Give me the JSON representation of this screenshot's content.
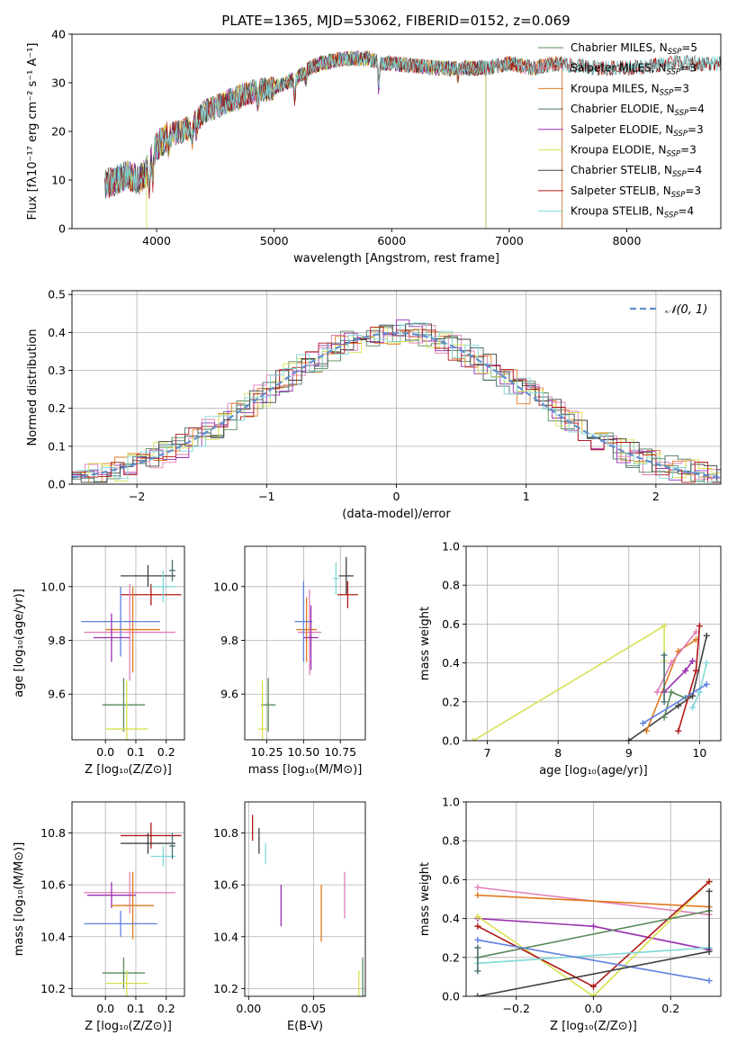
{
  "colors": {
    "ChM": "#5a8a5a",
    "SaM": "#e080b8",
    "KrM": "#e07a20",
    "ChE": "#4a7070",
    "SaE": "#9a30b0",
    "KrE": "#d8e050",
    "ChS": "#404040",
    "SaS": "#b01818",
    "KrS": "#80d8d8",
    "extra": "#6080e0",
    "gauss": "#6090d0"
  },
  "chart_data": [
    {
      "id": "spectrum",
      "type": "line",
      "title": "PLATE=1365, MJD=53062, FIBERID=0152, z=0.069",
      "xlabel": "wavelength [Angstrom, rest frame]",
      "ylabel": "Flux [fλ10⁻¹⁷ erg cm⁻² s⁻¹ A⁻¹]",
      "xlim": [
        3280,
        8800
      ],
      "ylim": [
        0,
        40
      ],
      "xticks": [
        4000,
        5000,
        6000,
        7000,
        8000
      ],
      "yticks": [
        0,
        10,
        20,
        30,
        40
      ],
      "grid": false,
      "legend": "top-right",
      "series": [
        {
          "name": "Chabrier MILES, N_SSP=5",
          "key": "ChM",
          "range": [
            3560,
            7450
          ]
        },
        {
          "name": "Salpeter MILES, N_SSP=3",
          "key": "SaM",
          "range": [
            3560,
            7450
          ]
        },
        {
          "name": "Kroupa MILES, N_SSP=3",
          "key": "KrM",
          "range": [
            3560,
            7450
          ]
        },
        {
          "name": "Chabrier ELODIE, N_SSP=4",
          "key": "ChE",
          "range": [
            3560,
            6800
          ]
        },
        {
          "name": "Salpeter ELODIE, N_SSP=3",
          "key": "SaE",
          "range": [
            3560,
            6800
          ]
        },
        {
          "name": "Kroupa ELODIE, N_SSP=3",
          "key": "KrE",
          "range": [
            3560,
            6800
          ]
        },
        {
          "name": "Chabrier STELIB, N_SSP=4",
          "key": "ChS",
          "range": [
            3560,
            8800
          ]
        },
        {
          "name": "Salpeter STELIB, N_SSP=3",
          "key": "SaS",
          "range": [
            3560,
            8800
          ]
        },
        {
          "name": "Kroupa STELIB, N_SSP=4",
          "key": "KrS",
          "range": [
            3560,
            8800
          ]
        }
      ],
      "continuum": {
        "x": [
          3560,
          3650,
          3750,
          3850,
          3920,
          4000,
          4100,
          4200,
          4300,
          4400,
          4500,
          4600,
          4700,
          4800,
          4900,
          5000,
          5100,
          5200,
          5300,
          5400,
          5500,
          5600,
          5700,
          5800,
          5900,
          6000,
          6200,
          6400,
          6600,
          6800,
          7000,
          7200,
          7400,
          7600,
          7800,
          8000,
          8200,
          8400,
          8600,
          8800
        ],
        "y": [
          9,
          10,
          11,
          10,
          12,
          17,
          19,
          20,
          21,
          24,
          25,
          26,
          27,
          28,
          28.5,
          29,
          30,
          31,
          33,
          34,
          34.5,
          35,
          35,
          35,
          34,
          34,
          33.5,
          33,
          33,
          33,
          34,
          33,
          34,
          33.5,
          33,
          33,
          33.5,
          34,
          34,
          34
        ]
      }
    },
    {
      "id": "residuals",
      "type": "step",
      "xlabel": "(data-model)/error",
      "ylabel": "Normed distribution",
      "xlim": [
        -2.5,
        2.5
      ],
      "ylim": [
        0,
        0.51
      ],
      "xticks": [
        -2,
        -1,
        0,
        1,
        2
      ],
      "yticks": [
        0.0,
        0.1,
        0.2,
        0.3,
        0.4,
        0.5
      ],
      "grid": true,
      "legend": "top-right",
      "reference": {
        "name": "𝒩(0, 1)",
        "mean": 0,
        "sigma": 1
      },
      "bin_width": 0.1
    },
    {
      "id": "age-vs-Z",
      "type": "errorbar",
      "xlabel": "Z [log₁₀(Z/Z⊙)]",
      "ylabel": "age  [log₁₀(age/yr)]",
      "xlim": [
        -0.11,
        0.26
      ],
      "ylim": [
        9.43,
        10.15
      ],
      "xticks": [
        0.0,
        0.1,
        0.2
      ],
      "yticks": [
        9.6,
        9.8,
        10.0
      ],
      "points": [
        {
          "key": "ChS",
          "x": 0.14,
          "y": 10.04,
          "xerr": 0.09,
          "yerr": 0.04
        },
        {
          "key": "SaS",
          "x": 0.15,
          "y": 9.97,
          "xerr": 0.1,
          "yerr": 0.04
        },
        {
          "key": "KrS",
          "x": 0.19,
          "y": 10.0,
          "xerr": 0.04,
          "yerr": 0.06
        },
        {
          "key": "ChE",
          "x": 0.22,
          "y": 10.06,
          "xerr": 0.01,
          "yerr": 0.04
        },
        {
          "key": "SaM",
          "x": 0.08,
          "y": 9.83,
          "xerr": 0.15,
          "yerr": 0.18
        },
        {
          "key": "KrM",
          "x": 0.09,
          "y": 9.84,
          "xerr": 0.09,
          "yerr": 0.16
        },
        {
          "key": "extra",
          "x": 0.05,
          "y": 9.87,
          "xerr": 0.13,
          "yerr": 0.13
        },
        {
          "key": "SaE",
          "x": 0.02,
          "y": 9.81,
          "xerr": 0.06,
          "yerr": 0.09
        },
        {
          "key": "ChM",
          "x": 0.06,
          "y": 9.56,
          "xerr": 0.07,
          "yerr": 0.1
        },
        {
          "key": "KrE",
          "x": 0.07,
          "y": 9.47,
          "xerr": 0.07,
          "yerr": 0.18
        }
      ]
    },
    {
      "id": "age-vs-mass",
      "type": "errorbar",
      "xlabel": "mass [log₁₀(M/M⊙)]",
      "ylabel": "",
      "xlim": [
        10.1,
        10.92
      ],
      "ylim": [
        9.43,
        10.15
      ],
      "xticks": [
        10.25,
        10.5,
        10.75
      ],
      "yticks": [
        9.6,
        9.8,
        10.0
      ],
      "points": [
        {
          "key": "ChS",
          "x": 10.79,
          "y": 10.04,
          "xerr": 0.05,
          "yerr": 0.07
        },
        {
          "key": "SaS",
          "x": 10.8,
          "y": 9.97,
          "xerr": 0.07,
          "yerr": 0.05
        },
        {
          "key": "KrS",
          "x": 10.72,
          "y": 10.03,
          "xerr": 0.02,
          "yerr": 0.06
        },
        {
          "key": "SaM",
          "x": 10.54,
          "y": 9.83,
          "xerr": 0.08,
          "yerr": 0.16
        },
        {
          "key": "KrM",
          "x": 10.52,
          "y": 9.84,
          "xerr": 0.07,
          "yerr": 0.12
        },
        {
          "key": "extra",
          "x": 10.5,
          "y": 9.87,
          "xerr": 0.06,
          "yerr": 0.15
        },
        {
          "key": "SaE",
          "x": 10.55,
          "y": 9.81,
          "xerr": 0.05,
          "yerr": 0.12
        },
        {
          "key": "ChM",
          "x": 10.26,
          "y": 9.56,
          "xerr": 0.05,
          "yerr": 0.1
        },
        {
          "key": "KrE",
          "x": 10.22,
          "y": 9.47,
          "xerr": 0.03,
          "yerr": 0.18
        }
      ]
    },
    {
      "id": "weight-vs-age",
      "type": "line",
      "xlabel": "age  [log₁₀(age/yr)]",
      "ylabel": "mass weight",
      "xlim": [
        6.7,
        10.3
      ],
      "ylim": [
        0,
        1.0
      ],
      "xticks": [
        7,
        8,
        9,
        10
      ],
      "yticks": [
        0.0,
        0.2,
        0.4,
        0.6,
        0.8,
        1.0
      ],
      "grid": true,
      "series": [
        {
          "key": "KrE",
          "x": [
            6.8,
            9.5,
            9.5
          ],
          "y": [
            0.0,
            0.59,
            0.41
          ]
        },
        {
          "key": "ChS",
          "x": [
            9.0,
            9.7,
            9.9,
            10.1
          ],
          "y": [
            0.0,
            0.18,
            0.23,
            0.54
          ]
        },
        {
          "key": "KrM",
          "x": [
            9.25,
            9.7,
            9.95
          ],
          "y": [
            0.05,
            0.46,
            0.52
          ]
        },
        {
          "key": "SaM",
          "x": [
            9.4,
            9.6,
            9.95
          ],
          "y": [
            0.25,
            0.4,
            0.56
          ]
        },
        {
          "key": "SaE",
          "x": [
            9.5,
            9.8,
            9.9
          ],
          "y": [
            0.25,
            0.36,
            0.41
          ]
        },
        {
          "key": "SaS",
          "x": [
            9.7,
            9.95,
            10.0
          ],
          "y": [
            0.05,
            0.36,
            0.59
          ]
        },
        {
          "key": "ChM",
          "x": [
            9.5,
            9.6,
            9.8
          ],
          "y": [
            0.12,
            0.25,
            0.22
          ]
        },
        {
          "key": "ChE",
          "x": [
            9.5,
            9.5
          ],
          "y": [
            0.2,
            0.44
          ]
        },
        {
          "key": "KrS",
          "x": [
            9.9,
            10.0,
            10.1
          ],
          "y": [
            0.17,
            0.25,
            0.4
          ]
        },
        {
          "key": "extra",
          "x": [
            9.2,
            10.1
          ],
          "y": [
            0.09,
            0.29
          ]
        }
      ]
    },
    {
      "id": "mass-vs-Z",
      "type": "errorbar",
      "xlabel": "Z [log₁₀(Z/Z⊙)]",
      "ylabel": "mass [log₁₀(M/M⊙)]",
      "xlim": [
        -0.11,
        0.26
      ],
      "ylim": [
        10.17,
        10.92
      ],
      "xticks": [
        0.0,
        0.1,
        0.2
      ],
      "yticks": [
        10.2,
        10.4,
        10.6,
        10.8
      ],
      "points": [
        {
          "key": "SaS",
          "x": 0.15,
          "y": 10.79,
          "xerr": 0.1,
          "yerr": 0.05
        },
        {
          "key": "ChS",
          "x": 0.14,
          "y": 10.76,
          "xerr": 0.09,
          "yerr": 0.04
        },
        {
          "key": "KrS",
          "x": 0.19,
          "y": 10.71,
          "xerr": 0.04,
          "yerr": 0.04
        },
        {
          "key": "ChE",
          "x": 0.22,
          "y": 10.75,
          "xerr": 0.01,
          "yerr": 0.05
        },
        {
          "key": "SaM",
          "x": 0.08,
          "y": 10.57,
          "xerr": 0.15,
          "yerr": 0.08
        },
        {
          "key": "SaE",
          "x": 0.02,
          "y": 10.56,
          "xerr": 0.08,
          "yerr": 0.05
        },
        {
          "key": "KrM",
          "x": 0.09,
          "y": 10.52,
          "xerr": 0.07,
          "yerr": 0.13
        },
        {
          "key": "extra",
          "x": 0.05,
          "y": 10.45,
          "xerr": 0.12,
          "yerr": 0.05
        },
        {
          "key": "ChM",
          "x": 0.06,
          "y": 10.26,
          "xerr": 0.07,
          "yerr": 0.06
        },
        {
          "key": "KrE",
          "x": 0.07,
          "y": 10.22,
          "xerr": 0.07,
          "yerr": 0.05
        }
      ]
    },
    {
      "id": "mass-vs-ebv",
      "type": "errorbar",
      "xlabel": "E(B-V)",
      "ylabel": "",
      "xlim": [
        -0.003,
        0.09
      ],
      "ylim": [
        10.17,
        10.92
      ],
      "xticks": [
        0.0,
        0.05
      ],
      "yticks": [
        10.2,
        10.4,
        10.6,
        10.8
      ],
      "points": [
        {
          "key": "SaS",
          "x": 0.003,
          "y": 10.82,
          "xerr": 0,
          "yerr": 0.05
        },
        {
          "key": "ChS",
          "x": 0.008,
          "y": 10.77,
          "xerr": 0,
          "yerr": 0.05
        },
        {
          "key": "KrS",
          "x": 0.013,
          "y": 10.72,
          "xerr": 0,
          "yerr": 0.04
        },
        {
          "key": "SaE",
          "x": 0.025,
          "y": 10.52,
          "xerr": 0,
          "yerr": 0.08
        },
        {
          "key": "KrM",
          "x": 0.056,
          "y": 10.49,
          "xerr": 0,
          "yerr": 0.11
        },
        {
          "key": "SaM",
          "x": 0.074,
          "y": 10.56,
          "xerr": 0,
          "yerr": 0.09
        },
        {
          "key": "ChM",
          "x": 0.088,
          "y": 10.23,
          "xerr": 0,
          "yerr": 0.09
        },
        {
          "key": "KrE",
          "x": 0.085,
          "y": 10.21,
          "xerr": 0,
          "yerr": 0.06
        }
      ]
    },
    {
      "id": "weight-vs-Z",
      "type": "line",
      "xlabel": "Z [log₁₀(Z/Z⊙)]",
      "ylabel": "mass weight",
      "xlim": [
        -0.33,
        0.33
      ],
      "ylim": [
        0,
        1.0
      ],
      "xticks": [
        -0.2,
        0.0,
        0.2
      ],
      "yticks": [
        0.0,
        0.2,
        0.4,
        0.6,
        0.8,
        1.0
      ],
      "grid": true,
      "series": [
        {
          "key": "SaM",
          "x": [
            -0.3,
            0.3
          ],
          "y": [
            0.56,
            0.42
          ]
        },
        {
          "key": "KrM",
          "x": [
            -0.3,
            0.3
          ],
          "y": [
            0.52,
            0.46
          ]
        },
        {
          "key": "SaE",
          "x": [
            -0.3,
            0.0,
            0.3
          ],
          "y": [
            0.4,
            0.36,
            0.24
          ]
        },
        {
          "key": "KrE",
          "x": [
            -0.3,
            0.0,
            0.3
          ],
          "y": [
            0.41,
            0.0,
            0.59
          ]
        },
        {
          "key": "SaS",
          "x": [
            -0.3,
            0.0,
            0.3
          ],
          "y": [
            0.36,
            0.05,
            0.59
          ]
        },
        {
          "key": "ChM",
          "x": [
            -0.3,
            0.3
          ],
          "y": [
            0.2,
            0.44
          ]
        },
        {
          "key": "KrS",
          "x": [
            -0.3,
            0.3
          ],
          "y": [
            0.17,
            0.25
          ]
        },
        {
          "key": "extra",
          "x": [
            -0.3,
            0.3
          ],
          "y": [
            0.29,
            0.08
          ]
        },
        {
          "key": "ChS",
          "x": [
            -0.3,
            0.3,
            0.3
          ],
          "y": [
            0.0,
            0.23,
            0.54
          ]
        },
        {
          "key": "ChE",
          "x": [
            -0.3,
            -0.3
          ],
          "y": [
            0.13,
            0.25
          ]
        }
      ]
    }
  ]
}
